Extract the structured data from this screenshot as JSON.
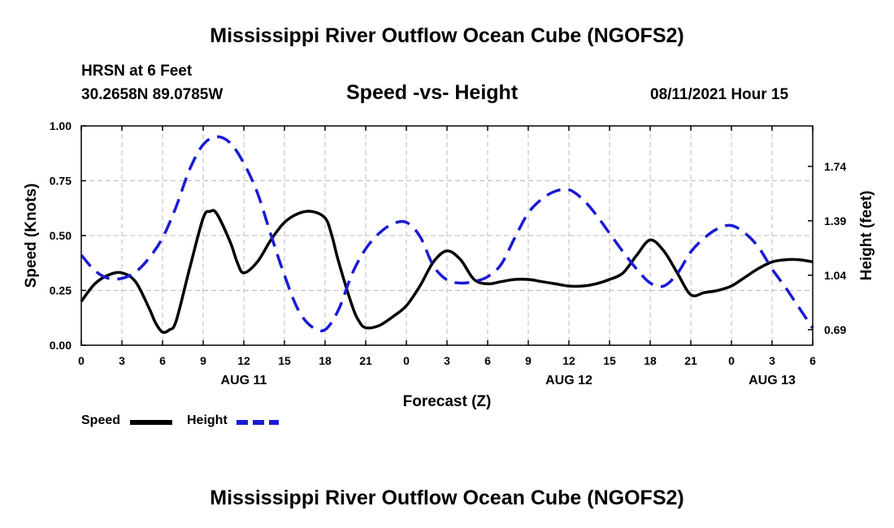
{
  "header": {
    "title": "Mississippi River Outflow Ocean Cube (NGOFS2)",
    "station": "HRSN at 6 Feet",
    "coords": "30.2658N  89.0785W",
    "subtitle": "Speed -vs- Height",
    "datetime": "08/11/2021 Hour 15"
  },
  "footer": {
    "title": "Mississippi River Outflow Ocean Cube (NGOFS2)"
  },
  "legend": {
    "speed_label": "Speed",
    "height_label": "Height"
  },
  "colors": {
    "speed": "#000000",
    "height": "#1a1ad6",
    "grid": "#bbbbbb"
  },
  "chart_data": {
    "type": "line",
    "xlabel": "Forecast (Z)",
    "ylabel_left": "Speed (Knots)",
    "ylabel_right": "Height (feet)",
    "x_unit": "forecast hours from 00Z Aug 11",
    "xlim": [
      0,
      54
    ],
    "x_ticks": [
      0,
      3,
      6,
      9,
      12,
      15,
      18,
      21,
      24,
      27,
      30,
      33,
      36,
      39,
      42,
      45,
      48,
      51,
      54
    ],
    "x_tick_labels": [
      "0",
      "3",
      "6",
      "9",
      "12",
      "15",
      "18",
      "21",
      "0",
      "3",
      "6",
      "9",
      "12",
      "15",
      "18",
      "21",
      "0",
      "3",
      "6"
    ],
    "date_labels": [
      {
        "x": 12,
        "label": "AUG 11"
      },
      {
        "x": 36,
        "label": "AUG 12"
      },
      {
        "x": 51,
        "label": "AUG 13"
      }
    ],
    "ylim_left": [
      0,
      1.0
    ],
    "y_ticks_left": [
      0,
      0.25,
      0.5,
      0.75,
      1.0
    ],
    "y_tick_labels_left": [
      "0.00",
      "0.25",
      "0.50",
      "0.75",
      "1.00"
    ],
    "ylim_right": [
      0.59,
      2.0
    ],
    "y_ticks_right": [
      0.69,
      1.04,
      1.39,
      1.74
    ],
    "y_tick_labels_right": [
      "0.69",
      "1.04",
      "1.39",
      "1.74"
    ],
    "series": [
      {
        "name": "Speed",
        "axis": "left",
        "style": "solid",
        "x": [
          0,
          1,
          2,
          3,
          4,
          5,
          5.5,
          6,
          6.5,
          7,
          8,
          9,
          9.5,
          10,
          11,
          11.5,
          12,
          13,
          14,
          15,
          16,
          17,
          18,
          18.5,
          19,
          20,
          20.5,
          21,
          22,
          23,
          24,
          25,
          26,
          27,
          28,
          29,
          30,
          31,
          32,
          33,
          34,
          35,
          36,
          37,
          38,
          39,
          40,
          41,
          42,
          43,
          44,
          45,
          46,
          47,
          48,
          49,
          50,
          51,
          52,
          53,
          54
        ],
        "values": [
          0.2,
          0.28,
          0.32,
          0.33,
          0.29,
          0.17,
          0.1,
          0.06,
          0.07,
          0.11,
          0.35,
          0.58,
          0.61,
          0.6,
          0.47,
          0.38,
          0.33,
          0.38,
          0.48,
          0.56,
          0.6,
          0.61,
          0.58,
          0.5,
          0.38,
          0.18,
          0.11,
          0.08,
          0.09,
          0.13,
          0.18,
          0.27,
          0.38,
          0.43,
          0.39,
          0.3,
          0.28,
          0.29,
          0.3,
          0.3,
          0.29,
          0.28,
          0.27,
          0.27,
          0.28,
          0.3,
          0.33,
          0.41,
          0.48,
          0.43,
          0.33,
          0.23,
          0.24,
          0.25,
          0.27,
          0.31,
          0.35,
          0.38,
          0.39,
          0.39,
          0.38
        ]
      },
      {
        "name": "Height",
        "axis": "right",
        "style": "dashed",
        "x": [
          0,
          1,
          2,
          3,
          4,
          5,
          6,
          7,
          8,
          9,
          10,
          11,
          12,
          13,
          14,
          15,
          16,
          17,
          18,
          19,
          20,
          21,
          22,
          23,
          24,
          25,
          26,
          27,
          28,
          29,
          30,
          31,
          32,
          33,
          34,
          35,
          36,
          37,
          38,
          39,
          40,
          41,
          42,
          43,
          44,
          45,
          46,
          47,
          48,
          49,
          50,
          51,
          52,
          53,
          54
        ],
        "values": [
          1.17,
          1.07,
          1.02,
          1.02,
          1.06,
          1.15,
          1.28,
          1.48,
          1.72,
          1.88,
          1.93,
          1.89,
          1.76,
          1.57,
          1.3,
          1.04,
          0.82,
          0.71,
          0.69,
          0.82,
          1.05,
          1.21,
          1.31,
          1.37,
          1.38,
          1.29,
          1.1,
          1.01,
          0.99,
          1.0,
          1.03,
          1.11,
          1.28,
          1.44,
          1.53,
          1.58,
          1.59,
          1.53,
          1.43,
          1.31,
          1.19,
          1.08,
          0.99,
          0.97,
          1.05,
          1.19,
          1.28,
          1.34,
          1.36,
          1.31,
          1.22,
          1.08,
          0.96,
          0.83,
          0.7
        ]
      }
    ]
  }
}
